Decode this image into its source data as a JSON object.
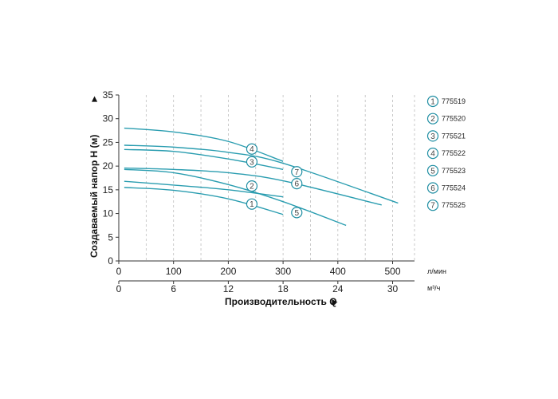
{
  "chart_data": {
    "type": "line",
    "xlabel": "Производительность Q",
    "ylabel": "Создаваемый напор H (м)",
    "x_unit_primary": "л/мин",
    "x_unit_secondary": "м³/ч",
    "xlim": [
      0,
      540
    ],
    "ylim": [
      0,
      35
    ],
    "x_ticks": [
      "0",
      "100",
      "200",
      "300",
      "400",
      "500"
    ],
    "x_ticks_secondary": [
      "0",
      "6",
      "12",
      "18",
      "24",
      "30"
    ],
    "y_ticks": [
      "0",
      "5",
      "10",
      "15",
      "20",
      "25",
      "30",
      "35"
    ],
    "grid": "vertical-dashed",
    "legend_position": "right",
    "series": [
      {
        "name": "775519",
        "marker": "1",
        "x": [
          10,
          100,
          200,
          300
        ],
        "y": [
          15.5,
          14.9,
          13.1,
          9.8
        ],
        "marker_at": [
          243,
          12.0
        ]
      },
      {
        "name": "775520",
        "marker": "2",
        "x": [
          10,
          100,
          200,
          300
        ],
        "y": [
          16.8,
          16.0,
          15.0,
          13.5
        ],
        "marker_at": [
          243,
          15.8
        ]
      },
      {
        "name": "775521",
        "marker": "3",
        "x": [
          10,
          100,
          200,
          300
        ],
        "y": [
          23.5,
          23.1,
          21.5,
          19.3
        ],
        "marker_at": [
          243,
          20.9
        ]
      },
      {
        "name": "775522",
        "marker": "4",
        "x": [
          10,
          100,
          200,
          300
        ],
        "y": [
          28.0,
          27.2,
          25.2,
          21.0
        ],
        "marker_at": [
          243,
          23.6
        ]
      },
      {
        "name": "775523",
        "marker": "5",
        "x": [
          10,
          100,
          200,
          300,
          415
        ],
        "y": [
          19.3,
          18.6,
          16.1,
          12.5,
          7.5
        ],
        "marker_at": [
          325,
          10.2
        ]
      },
      {
        "name": "775524",
        "marker": "6",
        "x": [
          10,
          100,
          200,
          300,
          480
        ],
        "y": [
          19.6,
          19.3,
          18.6,
          16.9,
          11.8
        ],
        "marker_at": [
          325,
          16.3
        ]
      },
      {
        "name": "775525",
        "marker": "7",
        "x": [
          10,
          100,
          200,
          300,
          510
        ],
        "y": [
          24.4,
          24.0,
          22.9,
          20.6,
          12.2
        ],
        "marker_at": [
          325,
          18.8
        ]
      }
    ]
  },
  "legend": {
    "items": [
      {
        "marker": "1",
        "label": "775519"
      },
      {
        "marker": "2",
        "label": "775520"
      },
      {
        "marker": "3",
        "label": "775521"
      },
      {
        "marker": "4",
        "label": "775522"
      },
      {
        "marker": "5",
        "label": "775523"
      },
      {
        "marker": "6",
        "label": "775524"
      },
      {
        "marker": "7",
        "label": "775525"
      }
    ]
  },
  "colors": {
    "curve": "#2a9db0",
    "marker_border": "#1f8ea3",
    "axis": "#333333",
    "grid": "#bdbdbd"
  }
}
